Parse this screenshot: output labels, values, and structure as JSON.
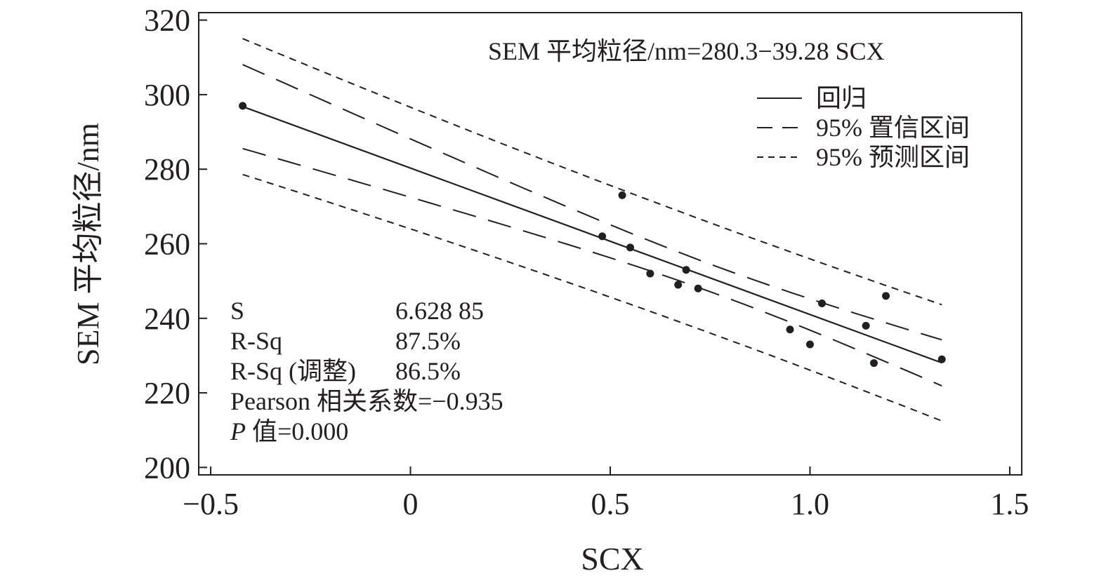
{
  "chart_data": {
    "type": "scatter",
    "xlabel": "SCX",
    "ylabel": "SEM 平均粒径/nm",
    "xlim": [
      -0.53,
      1.53
    ],
    "ylim": [
      198,
      322
    ],
    "xticks": [
      -0.5,
      0,
      0.5,
      1.0,
      1.5
    ],
    "xtick_labels": [
      "−0.5",
      "0",
      "0.5",
      "1.0",
      "1.5"
    ],
    "yticks": [
      200,
      220,
      240,
      260,
      280,
      300,
      320
    ],
    "ytick_labels": [
      "200",
      "220",
      "240",
      "260",
      "280",
      "300",
      "320"
    ],
    "grid": false,
    "points": {
      "x": [
        -0.42,
        0.53,
        0.48,
        0.55,
        0.6,
        0.67,
        0.69,
        0.72,
        0.95,
        1.0,
        1.03,
        1.14,
        1.16,
        1.19,
        1.33
      ],
      "y": [
        297,
        273,
        262,
        259,
        252,
        249,
        253,
        248,
        237,
        233,
        244,
        238,
        228,
        246,
        229
      ]
    },
    "regression": {
      "intercept": 280.3,
      "slope": -39.28,
      "x_range": [
        -0.42,
        1.33
      ]
    },
    "equation": "SEM 平均粒径/nm=280.3−39.28 SCX",
    "confidence_level": 0.95,
    "legend": {
      "position": "top-right",
      "entries": [
        "回归",
        "95% 置信区间",
        "95% 预测区间"
      ]
    },
    "stats": [
      {
        "label": "S",
        "value": "6.628 85"
      },
      {
        "label": "R-Sq",
        "value": "87.5%"
      },
      {
        "label": "R-Sq (调整)",
        "value": "86.5%"
      },
      {
        "label": "Pearson 相关系数=−0.935",
        "value": ""
      }
    ],
    "p_value": {
      "symbol": "P",
      "text": " 值=0.000"
    },
    "S": 6.62885,
    "color": "#231f20"
  }
}
